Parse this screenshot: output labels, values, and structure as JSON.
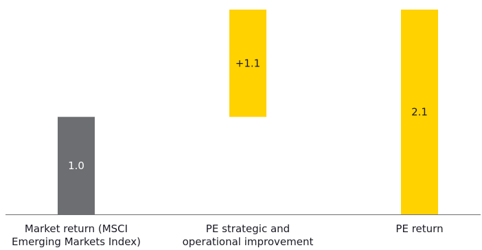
{
  "chart_data": {
    "type": "bar",
    "subtype": "waterfall",
    "categories": [
      [
        "Market return (MSCI",
        "Emerging Markets Index)"
      ],
      [
        "PE strategic and",
        "operational improvement"
      ],
      [
        "PE return"
      ]
    ],
    "bars": [
      {
        "kind": "total",
        "start": 0,
        "end": 1.0,
        "label": "1.0",
        "color": "#6d6e71",
        "label_color": "#ffffff"
      },
      {
        "kind": "delta",
        "start": 1.0,
        "end": 2.1,
        "label": "+1.1",
        "color": "#ffd200",
        "label_color": "#1a1a24"
      },
      {
        "kind": "total",
        "start": 0,
        "end": 2.1,
        "label": "2.1",
        "color": "#ffd200",
        "label_color": "#1a1a24"
      }
    ],
    "ylim": [
      0,
      2.1
    ],
    "grid": false,
    "legend": false
  }
}
